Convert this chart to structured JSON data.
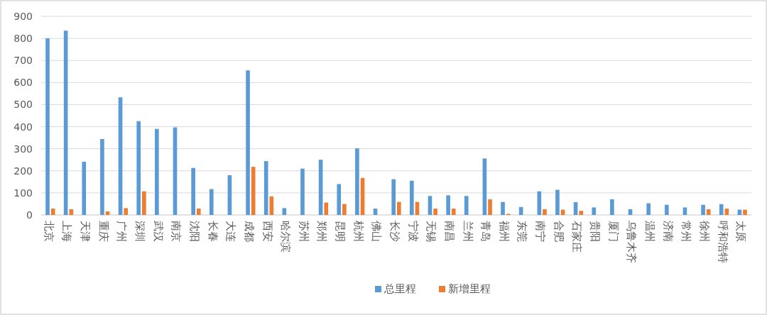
{
  "chart_data": {
    "type": "bar",
    "categories": [
      "北京",
      "上海",
      "天津",
      "重庆",
      "广州",
      "深圳",
      "武汉",
      "南京",
      "沈阳",
      "长春",
      "大连",
      "成都",
      "西安",
      "哈尔滨",
      "苏州",
      "郑州",
      "昆明",
      "杭州",
      "佛山",
      "长沙",
      "宁波",
      "无锡",
      "南昌",
      "兰州",
      "青岛",
      "福州",
      "东莞",
      "南宁",
      "合肥",
      "石家庄",
      "贵阳",
      "厦门",
      "乌鲁木齐",
      "温州",
      "济南",
      "常州",
      "徐州",
      "呼和浩特",
      "太原"
    ],
    "series": [
      {
        "name": "总里程",
        "color": "#5b9bd5",
        "values": [
          800,
          835,
          241,
          344,
          533,
          425,
          390,
          397,
          213,
          117,
          180,
          655,
          244,
          31,
          210,
          250,
          140,
          302,
          29,
          162,
          155,
          86,
          89,
          86,
          256,
          59,
          36,
          107,
          114,
          58,
          34,
          71,
          26,
          53,
          46,
          34,
          46,
          49,
          24
        ]
      },
      {
        "name": "新增里程",
        "color": "#ed7d31",
        "values": [
          29,
          26,
          null,
          16,
          31,
          107,
          null,
          null,
          29,
          null,
          null,
          218,
          84,
          null,
          null,
          56,
          50,
          168,
          null,
          59,
          59,
          29,
          29,
          null,
          71,
          5,
          null,
          26,
          24,
          19,
          null,
          null,
          null,
          null,
          null,
          null,
          26,
          29,
          24
        ]
      }
    ],
    "ylim": [
      0,
      900
    ],
    "yticks": [
      0,
      100,
      200,
      300,
      400,
      500,
      600,
      700,
      800,
      900
    ],
    "grid": "y",
    "legend": "bottom"
  }
}
